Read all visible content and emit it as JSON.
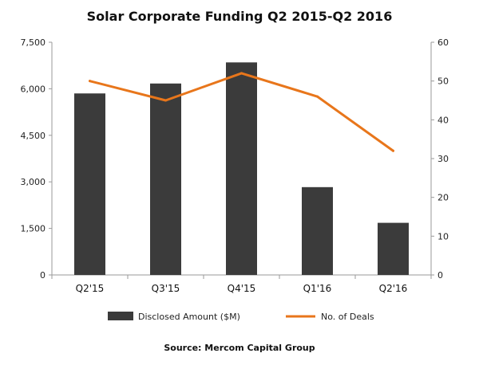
{
  "chart_data": {
    "type": "bar",
    "title": "Solar Corporate Funding Q2 2015-Q2 2016",
    "categories": [
      "Q2'15",
      "Q3'15",
      "Q4'15",
      "Q1'16",
      "Q2'16"
    ],
    "series": [
      {
        "name": "Disclosed Amount ($M)",
        "type": "bar",
        "axis": "left",
        "color": "#3b3b3b",
        "values": [
          5850,
          6170,
          6850,
          2830,
          1680
        ]
      },
      {
        "name": "No. of Deals",
        "type": "line",
        "axis": "right",
        "color": "#e8761b",
        "values": [
          50,
          45,
          52,
          46,
          32
        ]
      }
    ],
    "y_left": {
      "ylim": [
        0,
        7500
      ],
      "ticks": [
        "0",
        "1,500",
        "3,000",
        "4,500",
        "6,000",
        "7,500"
      ]
    },
    "y_right": {
      "ylim": [
        0,
        60
      ],
      "ticks": [
        "0",
        "10",
        "20",
        "30",
        "40",
        "50",
        "60"
      ]
    },
    "grid": false,
    "legend": "bottom",
    "source": "Source: Mercom Capital Group"
  }
}
